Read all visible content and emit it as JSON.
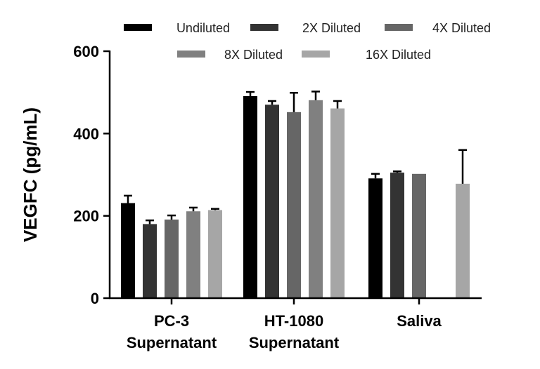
{
  "chart_data": {
    "type": "bar",
    "title": "",
    "xlabel": "",
    "ylabel": "VEGFC (pg/mL)",
    "ylim": [
      0,
      600
    ],
    "yticks": [
      0,
      200,
      400,
      600
    ],
    "grid": false,
    "legend_position": "top",
    "categories": [
      [
        "PC-3",
        "Supernatant"
      ],
      [
        "HT-1080",
        "Supernatant"
      ],
      [
        "Saliva"
      ]
    ],
    "series": [
      {
        "name": "Undiluted",
        "color": "#000000",
        "values": [
          231,
          491,
          291
        ],
        "errors": [
          18,
          10,
          11
        ]
      },
      {
        "name": "2X Diluted",
        "color": "#333333",
        "values": [
          180,
          470,
          305
        ],
        "errors": [
          9,
          9,
          3
        ]
      },
      {
        "name": "4X Diluted",
        "color": "#666666",
        "values": [
          191,
          452,
          302
        ],
        "errors": [
          10,
          47,
          0
        ]
      },
      {
        "name": "8X Diluted",
        "color": "#808080",
        "values": [
          211,
          481,
          null
        ],
        "errors": [
          9,
          21,
          null
        ]
      },
      {
        "name": "16X Diluted",
        "color": "#a6a6a6",
        "values": [
          214,
          461,
          278
        ],
        "errors": [
          3,
          18,
          82
        ]
      }
    ]
  }
}
